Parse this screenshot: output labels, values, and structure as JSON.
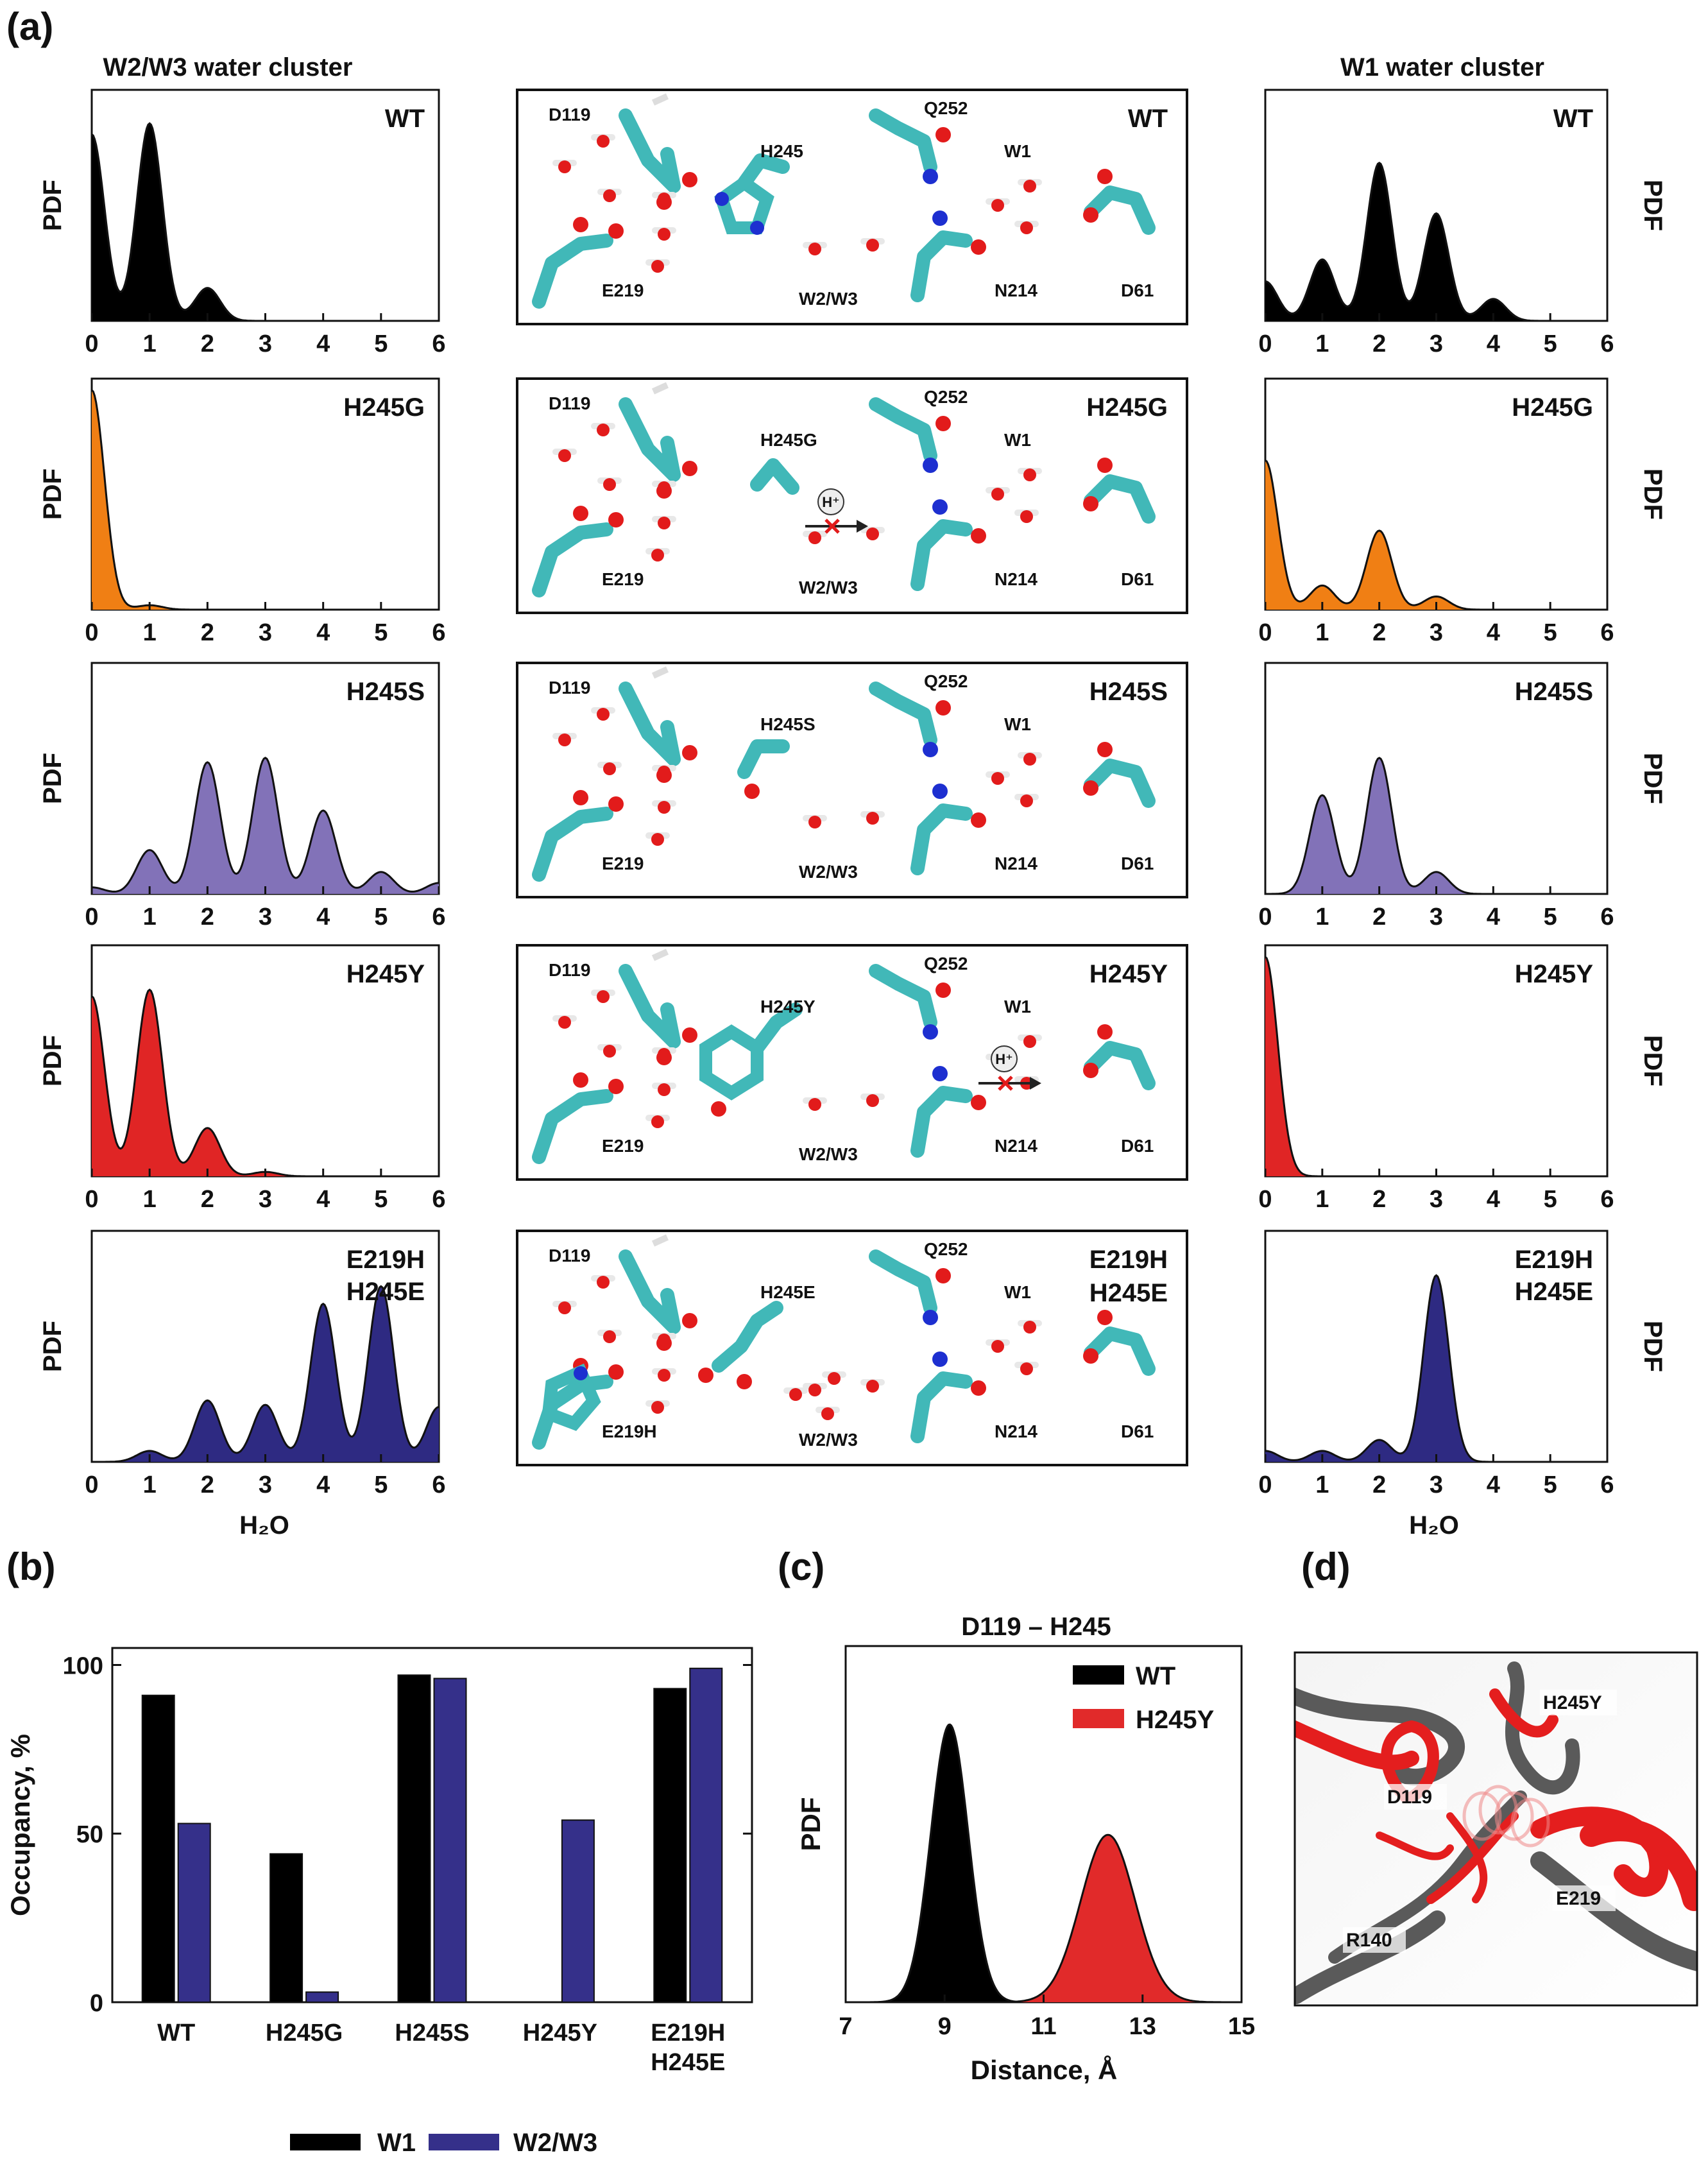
{
  "panel_labels": [
    "(a)",
    "(b)",
    "(c)",
    "(d)"
  ],
  "colors": {
    "WT": "#000000",
    "H245G": "#f07f14",
    "H245S": "#8272b8",
    "H245Y": "#e02525",
    "E219H_H245E": "#2e2a82",
    "W1_bar": "#000000",
    "W2W3_bar": "#35308a",
    "c_WT": "#000000",
    "c_H245Y": "#e12a2a"
  },
  "panel_a": {
    "left_title": "W2/W3 water cluster",
    "right_title": "W1 water cluster",
    "ylabel": "PDF",
    "xlabel": "H₂O",
    "ticks": [
      "0",
      "1",
      "2",
      "3",
      "4",
      "5",
      "6"
    ],
    "variants": [
      {
        "key": "WT",
        "label_lines": [
          "WT"
        ]
      },
      {
        "key": "H245G",
        "label_lines": [
          "H245G"
        ]
      },
      {
        "key": "H245S",
        "label_lines": [
          "H245S"
        ]
      },
      {
        "key": "H245Y",
        "label_lines": [
          "H245Y"
        ]
      },
      {
        "key": "E219H_H245E",
        "label_lines": [
          "E219H",
          "H245E"
        ]
      }
    ],
    "structures": [
      {
        "mid": "H245",
        "e": "E219"
      },
      {
        "mid": "H245G",
        "e": "E219"
      },
      {
        "mid": "H245S",
        "e": "E219"
      },
      {
        "mid": "H245Y",
        "e": "E219"
      },
      {
        "mid": "H245E",
        "e": "E219H"
      }
    ],
    "struct_labels": {
      "d119": "D119",
      "q252": "Q252",
      "w1": "W1",
      "w23": "W2/W3",
      "n214": "N214",
      "d61": "D61",
      "hplus": "H⁺"
    }
  },
  "chart_data": [
    {
      "id": "a_left",
      "type": "area",
      "title": "W2/W3 water cluster",
      "xlabel": "H₂O",
      "ylabel": "PDF",
      "xlim": [
        0,
        6
      ],
      "series": [
        {
          "name": "WT",
          "peaks": [
            [
              0,
              0.85
            ],
            [
              1,
              0.9
            ],
            [
              2,
              0.15
            ]
          ]
        },
        {
          "name": "H245G",
          "peaks": [
            [
              0,
              1.0
            ],
            [
              1,
              0.02
            ]
          ]
        },
        {
          "name": "H245S",
          "peaks": [
            [
              1,
              0.2
            ],
            [
              2,
              0.6
            ],
            [
              3,
              0.62
            ],
            [
              4,
              0.38
            ],
            [
              5,
              0.1
            ],
            [
              6,
              0.05
            ],
            [
              0,
              0.03
            ]
          ]
        },
        {
          "name": "H245Y",
          "peaks": [
            [
              0,
              0.82
            ],
            [
              1,
              0.85
            ],
            [
              2,
              0.22
            ],
            [
              3,
              0.02
            ]
          ]
        },
        {
          "name": "E219H_H245E",
          "peaks": [
            [
              1,
              0.05
            ],
            [
              2,
              0.28
            ],
            [
              3,
              0.26
            ],
            [
              4,
              0.72
            ],
            [
              5,
              0.8
            ],
            [
              6,
              0.25
            ]
          ]
        }
      ]
    },
    {
      "id": "a_right",
      "type": "area",
      "title": "W1 water cluster",
      "xlabel": "H₂O",
      "ylabel": "PDF",
      "xlim": [
        0,
        6
      ],
      "series": [
        {
          "name": "WT",
          "peaks": [
            [
              0,
              0.18
            ],
            [
              1,
              0.28
            ],
            [
              2,
              0.72
            ],
            [
              3,
              0.49
            ],
            [
              4,
              0.1
            ]
          ]
        },
        {
          "name": "H245G",
          "peaks": [
            [
              0,
              0.68
            ],
            [
              1,
              0.11
            ],
            [
              2,
              0.36
            ],
            [
              3,
              0.06
            ]
          ]
        },
        {
          "name": "H245S",
          "peaks": [
            [
              1,
              0.45
            ],
            [
              2,
              0.62
            ],
            [
              3,
              0.1
            ]
          ]
        },
        {
          "name": "H245Y",
          "peaks": [
            [
              0,
              1.0
            ]
          ]
        },
        {
          "name": "E219H_H245E",
          "peaks": [
            [
              0,
              0.05
            ],
            [
              1,
              0.05
            ],
            [
              2,
              0.1
            ],
            [
              3,
              0.85
            ]
          ]
        }
      ]
    },
    {
      "id": "b",
      "type": "bar",
      "ylabel": "Occupancy, %",
      "ylim": [
        0,
        100
      ],
      "yticks": [
        "0",
        "50",
        "100"
      ],
      "categories": [
        "WT",
        "H245G",
        "H245S",
        "H245Y",
        "E219H H245E"
      ],
      "category_lines": [
        [
          "WT"
        ],
        [
          "H245G"
        ],
        [
          "H245S"
        ],
        [
          "H245Y"
        ],
        [
          "E219H",
          "H245E"
        ]
      ],
      "series": [
        {
          "name": "W1",
          "values": [
            91,
            44,
            97,
            0,
            93
          ]
        },
        {
          "name": "W2/W3",
          "values": [
            53,
            3,
            96,
            54,
            99
          ]
        }
      ],
      "legend": "bottom"
    },
    {
      "id": "c",
      "type": "area",
      "title": "D119 – H245",
      "xlabel": "Distance, Å",
      "ylabel": "PDF",
      "xlim": [
        7,
        15
      ],
      "xticks": [
        "7",
        "9",
        "11",
        "13",
        "15"
      ],
      "series": [
        {
          "name": "WT",
          "mean": 9.1,
          "sd": 0.38,
          "peak": 0.78
        },
        {
          "name": "H245Y",
          "mean": 12.3,
          "sd": 0.55,
          "peak": 0.47
        }
      ],
      "legend": "top-right"
    }
  ],
  "panel_d": {
    "labels": [
      "H245Y",
      "D119",
      "R140",
      "E219"
    ]
  }
}
